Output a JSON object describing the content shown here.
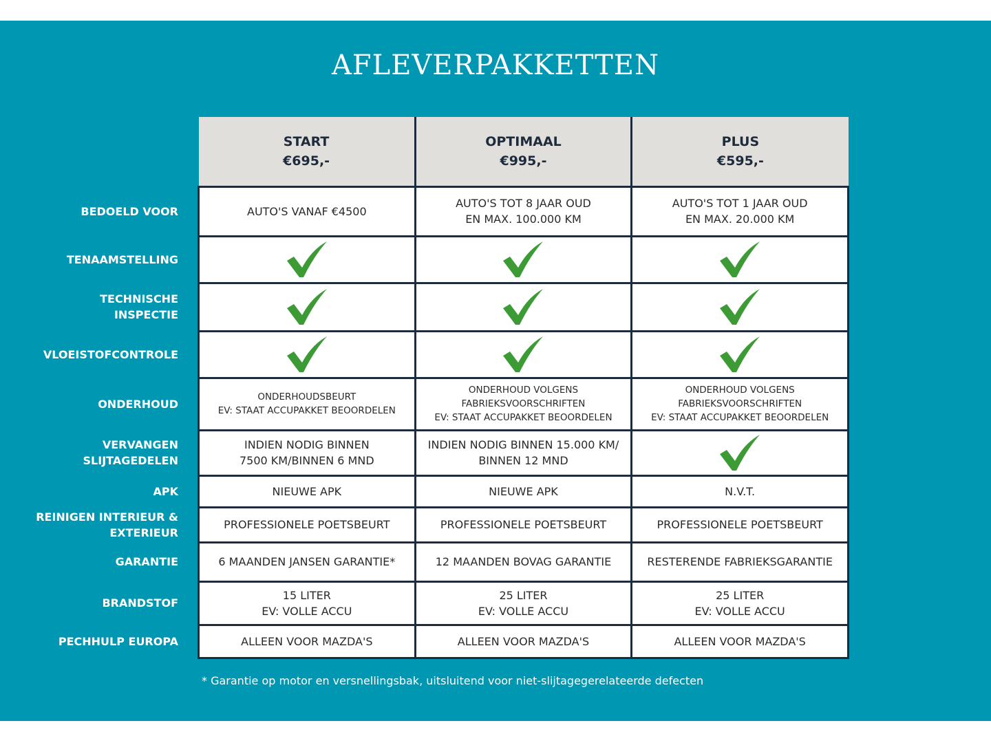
{
  "title": "AFLEVERPAKKETTEN",
  "colors": {
    "background": "#0097b2",
    "header": "#e0dfdb",
    "border": "#1d2b3c",
    "check": "#3d9b35"
  },
  "packages": [
    {
      "name": "START",
      "price": "€695,-"
    },
    {
      "name": "OPTIMAAL",
      "price": "€995,-"
    },
    {
      "name": "PLUS",
      "price": "€595,-"
    }
  ],
  "rows": [
    {
      "label": [
        "BEDOELD VOOR"
      ],
      "cells": [
        [
          "AUTO'S VANAF €4500"
        ],
        [
          "AUTO'S TOT 8 JAAR OUD",
          "EN MAX. 100.000 KM"
        ],
        [
          "AUTO'S TOT 1 JAAR OUD",
          "EN MAX. 20.000 KM"
        ]
      ]
    },
    {
      "label": [
        "TENAAMSTELLING"
      ],
      "cells": [
        "check-icon",
        "check-icon",
        "check-icon"
      ]
    },
    {
      "label": [
        "TECHNISCHE",
        "INSPECTIE"
      ],
      "cells": [
        "check-icon",
        "check-icon",
        "check-icon"
      ]
    },
    {
      "label": [
        "VLOEISTOFCONTROLE"
      ],
      "cells": [
        "check-icon",
        "check-icon",
        "check-icon"
      ]
    },
    {
      "label": [
        "ONDERHOUD"
      ],
      "small": true,
      "cells": [
        [
          "ONDERHOUDSBEURT",
          "EV: STAAT ACCUPAKKET BEOORDELEN"
        ],
        [
          "ONDERHOUD VOLGENS",
          "FABRIEKSVOORSCHRIFTEN",
          "EV: STAAT ACCUPAKKET BEOORDELEN"
        ],
        [
          "ONDERHOUD VOLGENS",
          "FABRIEKSVOORSCHRIFTEN",
          "EV: STAAT ACCUPAKKET BEOORDELEN"
        ]
      ]
    },
    {
      "label": [
        "VERVANGEN",
        "SLIJTAGEDELEN"
      ],
      "cells": [
        [
          "INDIEN NODIG BINNEN",
          "7500 KM/BINNEN 6 MND"
        ],
        [
          "INDIEN NODIG BINNEN 15.000 KM/",
          "BINNEN 12 MND"
        ],
        "check-icon"
      ]
    },
    {
      "label": [
        "APK"
      ],
      "cells": [
        [
          "NIEUWE APK"
        ],
        [
          "NIEUWE APK"
        ],
        [
          "N.V.T."
        ]
      ]
    },
    {
      "label": [
        "REINIGEN INTERIEUR &",
        "EXTERIEUR"
      ],
      "cells": [
        [
          "PROFESSIONELE POETSBEURT"
        ],
        [
          "PROFESSIONELE POETSBEURT"
        ],
        [
          "PROFESSIONELE POETSBEURT"
        ]
      ]
    },
    {
      "label": [
        "GARANTIE"
      ],
      "cells": [
        [
          "6 MAANDEN JANSEN GARANTIE*"
        ],
        [
          "12 MAANDEN BOVAG GARANTIE"
        ],
        [
          "RESTERENDE FABRIEKSGARANTIE"
        ]
      ]
    },
    {
      "label": [
        "BRANDSTOF"
      ],
      "cells": [
        [
          "15 LITER",
          "EV: VOLLE ACCU"
        ],
        [
          "25 LITER",
          "EV: VOLLE ACCU"
        ],
        [
          "25 LITER",
          "EV: VOLLE ACCU"
        ]
      ]
    },
    {
      "label": [
        "PECHHULP EUROPA"
      ],
      "cells": [
        [
          "ALLEEN VOOR MAZDA'S"
        ],
        [
          "ALLEEN VOOR MAZDA'S"
        ],
        [
          "ALLEEN VOOR MAZDA'S"
        ]
      ]
    }
  ],
  "footnote": "* Garantie op motor en versnellingsbak, uitsluitend voor niet-slijtagegerelateerde defecten"
}
